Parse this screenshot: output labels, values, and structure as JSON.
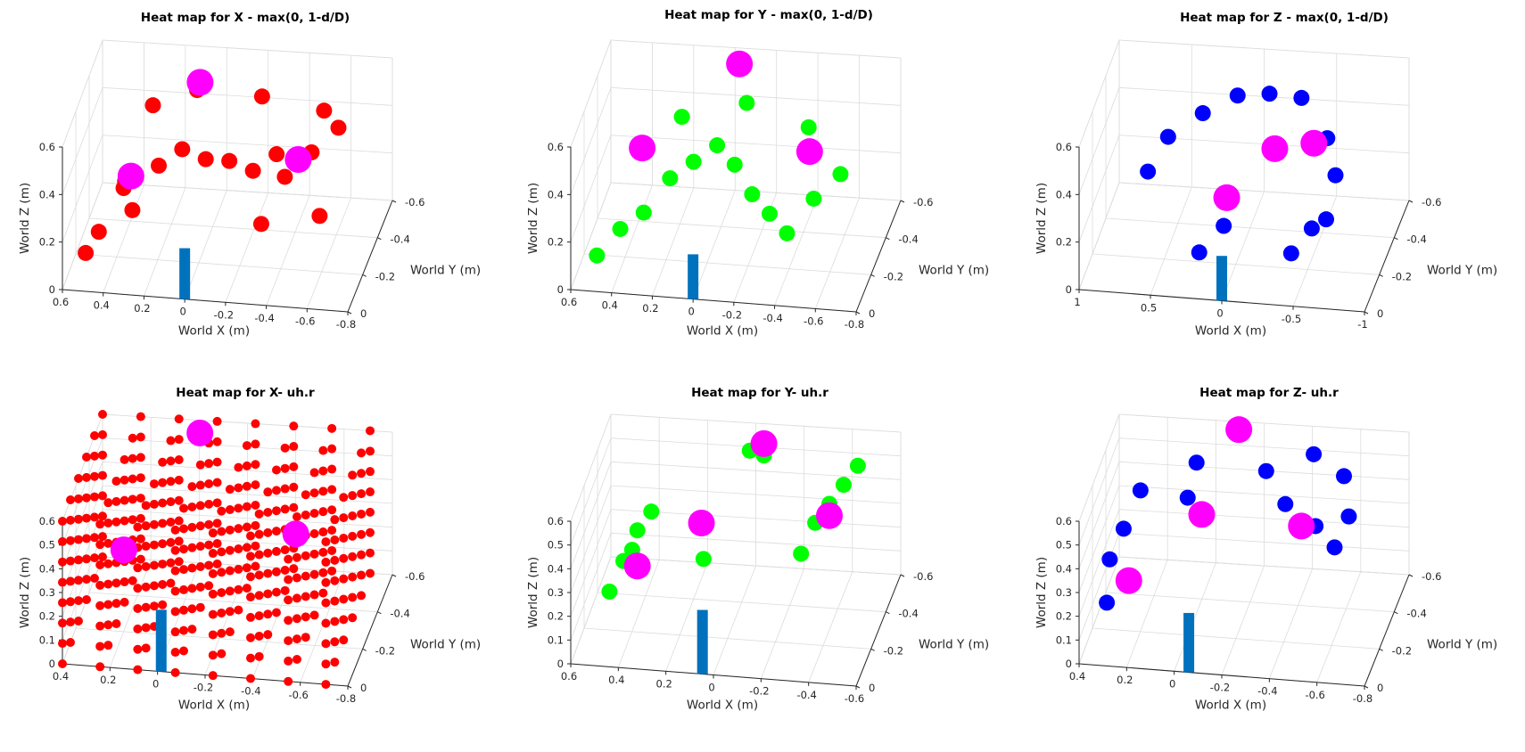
{
  "colors": {
    "x_series": "#ff0000",
    "y_series": "#00ff00",
    "z_series": "#0000ff",
    "magenta_markers": "#ff00ff",
    "stem": "#0072bd"
  },
  "chart_data": [
    {
      "type": "scatter",
      "projection": "3d",
      "grid": true,
      "title": "Heat map for X - max(0, 1-d/D)",
      "xlabel": "World X (m)",
      "ylabel": "World Y (m)",
      "zlabel": "World Z (m)",
      "xlim": [
        -0.8,
        0.6
      ],
      "ylim": [
        -0.7,
        0
      ],
      "zlim": [
        0,
        0.7
      ],
      "xticks": [
        "0.6",
        "0.4",
        "0.2",
        "0",
        "-0.2",
        "-0.4",
        "-0.6",
        "-0.8"
      ],
      "yticks": [
        "0",
        "-0.2",
        "-0.4",
        "-0.6"
      ],
      "zticks": [
        "0",
        "0.2",
        "0.4",
        "0.6"
      ],
      "series": [
        {
          "color": "#ff0000",
          "points": [
            [
              0.5,
              -0.05,
              0.15
            ],
            [
              0.45,
              -0.1,
              0.22
            ],
            [
              0.3,
              -0.15,
              0.3
            ],
            [
              0.35,
              -0.2,
              0.4
            ],
            [
              0.2,
              -0.25,
              0.45
            ],
            [
              0.1,
              -0.3,
              0.5
            ],
            [
              0,
              -0.35,
              0.42
            ],
            [
              -0.1,
              -0.4,
              0.38
            ],
            [
              -0.2,
              -0.45,
              0.3
            ],
            [
              -0.3,
              -0.5,
              0.35
            ],
            [
              -0.4,
              -0.3,
              0.4
            ],
            [
              -0.5,
              -0.4,
              0.45
            ],
            [
              -0.6,
              -0.5,
              0.5
            ],
            [
              0.3,
              -0.5,
              0.55
            ],
            [
              0.1,
              -0.55,
              0.6
            ],
            [
              -0.2,
              -0.6,
              0.55
            ],
            [
              -0.5,
              -0.6,
              0.5
            ],
            [
              0.4,
              -0.35,
              0.25
            ],
            [
              -0.3,
              -0.25,
              0.2
            ],
            [
              -0.6,
              -0.2,
              0.3
            ]
          ]
        }
      ],
      "magenta": [
        [
          0.1,
          -0.6,
          0.6
        ],
        [
          0.35,
          -0.3,
          0.35
        ],
        [
          -0.45,
          -0.35,
          0.45
        ]
      ],
      "stem": {
        "x": 0,
        "y": 0,
        "z_top": 0.25
      }
    },
    {
      "type": "scatter",
      "projection": "3d",
      "grid": true,
      "title": "Heat map for Y - max(0, 1-d/D)",
      "xlabel": "World X (m)",
      "ylabel": "World Y (m)",
      "zlabel": "World Z (m)",
      "xlim": [
        -0.8,
        0.6
      ],
      "ylim": [
        -0.7,
        0
      ],
      "zlim": [
        0,
        0.7
      ],
      "xticks": [
        "0.6",
        "0.4",
        "0.2",
        "0",
        "-0.2",
        "-0.4",
        "-0.6",
        "-0.8"
      ],
      "yticks": [
        "0",
        "-0.2",
        "-0.4",
        "-0.6"
      ],
      "zticks": [
        "0",
        "0.2",
        "0.4",
        "0.6"
      ],
      "series": [
        {
          "color": "#00ff00",
          "points": [
            [
              0.5,
              -0.1,
              0.1
            ],
            [
              0.4,
              -0.15,
              0.2
            ],
            [
              0.3,
              -0.2,
              0.25
            ],
            [
              0.2,
              -0.3,
              0.35
            ],
            [
              0.1,
              -0.35,
              0.4
            ],
            [
              0,
              -0.4,
              0.45
            ],
            [
              -0.1,
              -0.35,
              0.4
            ],
            [
              -0.2,
              -0.3,
              0.3
            ],
            [
              -0.3,
              -0.25,
              0.25
            ],
            [
              -0.4,
              -0.2,
              0.2
            ],
            [
              -0.5,
              -0.3,
              0.3
            ],
            [
              -0.6,
              -0.4,
              0.35
            ],
            [
              0.2,
              -0.5,
              0.5
            ],
            [
              -0.1,
              -0.55,
              0.55
            ],
            [
              -0.4,
              -0.55,
              0.45
            ]
          ]
        }
      ],
      "magenta": [
        [
          -0.05,
          -0.6,
          0.7
        ],
        [
          0.35,
          -0.35,
          0.45
        ],
        [
          -0.45,
          -0.4,
          0.45
        ]
      ],
      "stem": {
        "x": 0,
        "y": 0,
        "z_top": 0.22
      }
    },
    {
      "type": "scatter",
      "projection": "3d",
      "grid": true,
      "title": "Heat map for Z - max(0, 1-d/D)",
      "xlabel": "World X (m)",
      "ylabel": "World Y (m)",
      "zlabel": "World Z (m)",
      "xlim": [
        -1,
        1
      ],
      "ylim": [
        -0.7,
        0
      ],
      "zlim": [
        0,
        0.7
      ],
      "xticks": [
        "1",
        "0.5",
        "0",
        "-0.5",
        "-1"
      ],
      "yticks": [
        "0",
        "-0.2",
        "-0.4",
        "-0.6"
      ],
      "zticks": [
        "0",
        "0.2",
        "0.4",
        "0.6"
      ],
      "series": [
        {
          "color": "#0000ff",
          "points": [
            [
              0.6,
              -0.2,
              0.45
            ],
            [
              0.5,
              -0.3,
              0.55
            ],
            [
              0.3,
              -0.4,
              0.6
            ],
            [
              0.1,
              -0.5,
              0.62
            ],
            [
              -0.1,
              -0.55,
              0.6
            ],
            [
              -0.3,
              -0.6,
              0.55
            ],
            [
              -0.5,
              -0.55,
              0.4
            ],
            [
              -0.6,
              -0.45,
              0.3
            ],
            [
              -0.5,
              -0.3,
              0.15
            ],
            [
              -0.4,
              -0.2,
              0.1
            ],
            [
              -0.6,
              -0.3,
              0.2
            ],
            [
              0.2,
              -0.1,
              0.15
            ],
            [
              0.05,
              -0.15,
              0.25
            ]
          ]
        }
      ],
      "magenta": [
        [
          0.05,
          -0.2,
          0.35
        ],
        [
          -0.2,
          -0.4,
          0.45
        ],
        [
          -0.45,
          -0.45,
          0.45
        ]
      ],
      "stem": {
        "x": 0,
        "y": 0,
        "z_top": 0.22
      }
    },
    {
      "type": "scatter",
      "projection": "3d",
      "grid": true,
      "title": "Heat map for X- uh.r",
      "xlabel": "World X (m)",
      "ylabel": "World Y (m)",
      "zlabel": "World Z (m)",
      "xlim": [
        -0.8,
        0.5
      ],
      "ylim": [
        -0.7,
        0
      ],
      "zlim": [
        0,
        0.6
      ],
      "xticks": [
        "0.4",
        "0.2",
        "0",
        "-0.2",
        "-0.4",
        "-0.6",
        "-0.8"
      ],
      "yticks": [
        "0",
        "-0.2",
        "-0.4",
        "-0.6"
      ],
      "zticks": [
        "0",
        "0.1",
        "0.2",
        "0.3",
        "0.4",
        "0.5",
        "0.6"
      ],
      "lattice": {
        "color": "#ff0000",
        "x": [
          -0.7,
          0.5
        ],
        "y": [
          -0.7,
          0
        ],
        "z": [
          0,
          0.6
        ],
        "n": [
          8,
          6,
          8
        ]
      },
      "magenta": [
        [
          0.05,
          -0.65,
          0.58
        ],
        [
          0.3,
          -0.3,
          0.3
        ],
        [
          -0.45,
          -0.4,
          0.35
        ]
      ],
      "stem": {
        "x": 0.05,
        "y": 0,
        "z_top": 0.26
      }
    },
    {
      "type": "scatter",
      "projection": "3d",
      "grid": true,
      "title": "Heat map for Y- uh.r",
      "xlabel": "World X (m)",
      "ylabel": "World Y (m)",
      "zlabel": "World Z (m)",
      "xlim": [
        -0.7,
        0.6
      ],
      "ylim": [
        -0.7,
        0
      ],
      "zlim": [
        0,
        0.6
      ],
      "xticks": [
        "0.6",
        "0.4",
        "0.2",
        "0",
        "-0.2",
        "-0.4",
        "-0.6"
      ],
      "yticks": [
        "0",
        "-0.2",
        "-0.4",
        "-0.6"
      ],
      "zticks": [
        "0",
        "0.1",
        "0.2",
        "0.3",
        "0.4",
        "0.5",
        "0.6"
      ],
      "series": [
        {
          "color": "#00ff00",
          "points": [
            [
              0.45,
              -0.1,
              0.25
            ],
            [
              0.4,
              -0.15,
              0.35
            ],
            [
              0.35,
              -0.2,
              0.45
            ],
            [
              0.3,
              -0.25,
              0.5
            ],
            [
              0.4,
              -0.3,
              0.3
            ],
            [
              -0.05,
              -0.6,
              0.55
            ],
            [
              -0.1,
              -0.65,
              0.5
            ],
            [
              -0.4,
              -0.4,
              0.4
            ],
            [
              -0.45,
              -0.45,
              0.45
            ],
            [
              -0.5,
              -0.5,
              0.5
            ],
            [
              -0.35,
              -0.35,
              0.3
            ],
            [
              -0.55,
              -0.55,
              0.55
            ],
            [
              0.05,
              -0.2,
              0.35
            ]
          ]
        }
      ],
      "magenta": [
        [
          -0.1,
          -0.65,
          0.55
        ],
        [
          0.35,
          -0.2,
          0.3
        ],
        [
          0.1,
          -0.35,
          0.4
        ],
        [
          -0.45,
          -0.45,
          0.4
        ]
      ],
      "stem": {
        "x": 0,
        "y": 0,
        "z_top": 0.27
      }
    },
    {
      "type": "scatter",
      "projection": "3d",
      "grid": true,
      "title": "Heat map for Z- uh.r",
      "xlabel": "World X (m)",
      "ylabel": "World Y (m)",
      "zlabel": "World Z (m)",
      "xlim": [
        -0.8,
        0.5
      ],
      "ylim": [
        -0.7,
        0
      ],
      "zlim": [
        0,
        0.6
      ],
      "xticks": [
        "0.4",
        "0.2",
        "0",
        "-0.2",
        "-0.4",
        "-0.6",
        "-0.8"
      ],
      "yticks": [
        "0",
        "-0.2",
        "-0.4",
        "-0.6"
      ],
      "zticks": [
        "0",
        "0.1",
        "0.2",
        "0.3",
        "0.4",
        "0.5",
        "0.6"
      ],
      "series": [
        {
          "color": "#0000ff",
          "points": [
            [
              0.4,
              -0.1,
              0.2
            ],
            [
              0.4,
              -0.15,
              0.35
            ],
            [
              0.35,
              -0.2,
              0.45
            ],
            [
              0.3,
              -0.3,
              0.55
            ],
            [
              0.1,
              -0.35,
              0.5
            ],
            [
              0.05,
              -0.4,
              0.4
            ],
            [
              0.1,
              -0.5,
              0.55
            ],
            [
              -0.2,
              -0.55,
              0.5
            ],
            [
              -0.3,
              -0.5,
              0.4
            ],
            [
              -0.45,
              -0.45,
              0.35
            ],
            [
              -0.55,
              -0.4,
              0.3
            ],
            [
              -0.4,
              -0.6,
              0.55
            ],
            [
              -0.55,
              -0.55,
              0.5
            ],
            [
              -0.6,
              -0.45,
              0.4
            ]
          ]
        }
      ],
      "magenta": [
        [
          0.3,
          -0.1,
          0.3
        ],
        [
          0.05,
          -0.4,
          0.4
        ],
        [
          -0.05,
          -0.65,
          0.6
        ],
        [
          -0.4,
          -0.4,
          0.38
        ]
      ],
      "stem": {
        "x": 0,
        "y": 0,
        "z_top": 0.25
      }
    }
  ]
}
